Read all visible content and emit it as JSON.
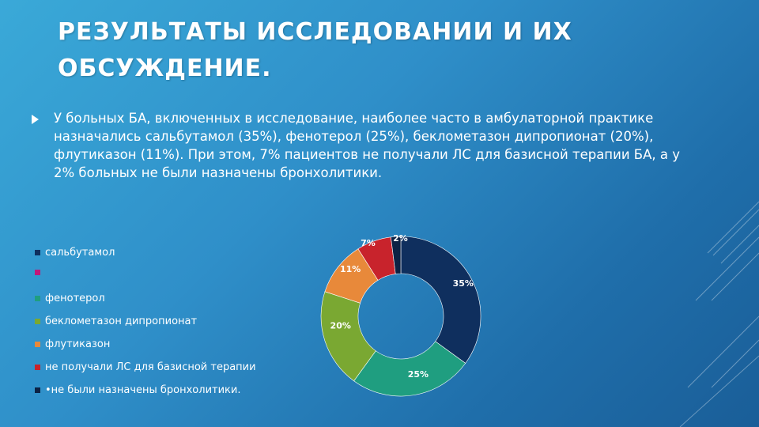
{
  "slide": {
    "title_lines": [
      "РЕЗУЛЬТАТЫ ИССЛЕДОВАНИИ И ИХ",
      "ОБСУЖДЕНИЕ."
    ],
    "bullet": "У больных БА, включенных в исследование, наиболее часто в амбулаторной практике назначались сальбутамол (35%), фенотерол (25%), беклометазон дипропионат (20%), флутиказон (11%). При этом, 7% пациентов не получали ЛС для базисной терапии БА, а у 2% больных не были назначены бронхолитики."
  },
  "chart_data": {
    "type": "pie",
    "variant": "donut",
    "legend_position": "left",
    "legend": [
      {
        "label": "сальбутамол",
        "color": "#0f2f5e"
      },
      {
        "label": "",
        "color": "#c0197a"
      },
      {
        "label": "фенотерол",
        "color": "#1f9e80"
      },
      {
        "label": "беклометазон дипропионат",
        "color": "#7aa832"
      },
      {
        "label": "флутиказон",
        "color": "#e8893a"
      },
      {
        "label": "не получали ЛС для базисной терапии",
        "color": "#c8232c"
      },
      {
        "label": "•не были назначены бронхолитики.",
        "color": "#0c2244"
      }
    ],
    "slices": [
      {
        "name": "сальбутамол",
        "value": 35,
        "label": "35%",
        "color": "#0f2f5e"
      },
      {
        "name": "фенотерол",
        "value": 25,
        "label": "25%",
        "color": "#1f9e80"
      },
      {
        "name": "беклометазон дипропионат",
        "value": 20,
        "label": "20%",
        "color": "#7aa832"
      },
      {
        "name": "флутиказон",
        "value": 11,
        "label": "11%",
        "color": "#e8893a"
      },
      {
        "name": "не получали ЛС для базисной терапии",
        "value": 7,
        "label": "7%",
        "color": "#c8232c"
      },
      {
        "name": "не были назначены бронхолитики",
        "value": 2,
        "label": "2%",
        "color": "#0c2244"
      }
    ]
  }
}
